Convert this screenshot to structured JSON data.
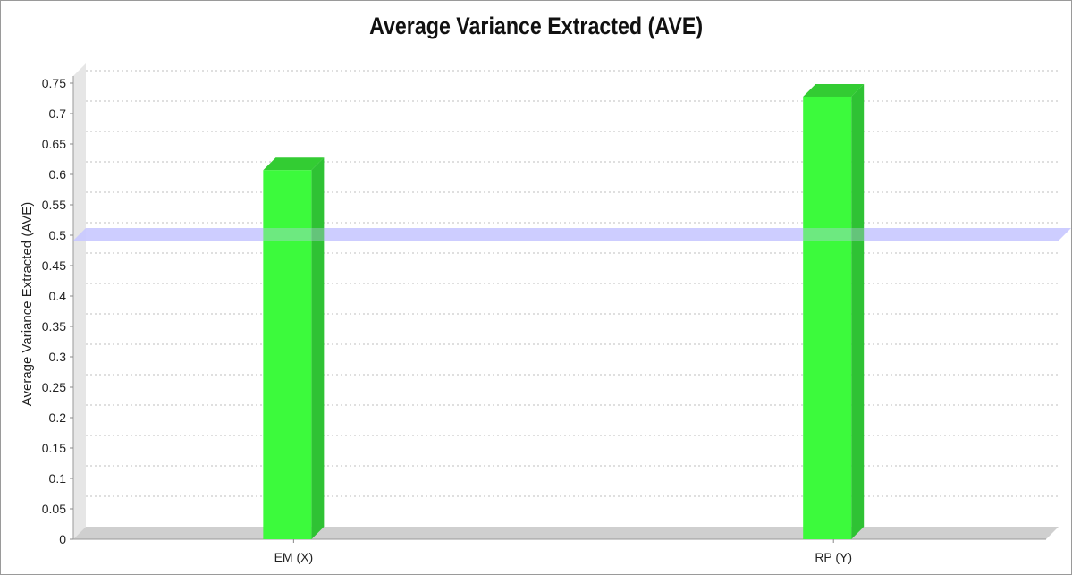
{
  "chart_data": {
    "type": "bar",
    "title": "Average Variance Extracted (AVE)",
    "ylabel": "Average Variance Extracted (AVE)",
    "xlabel": "",
    "categories": [
      "EM (X)",
      "RP (Y)"
    ],
    "values": [
      0.607,
      0.728
    ],
    "ylim": [
      0,
      0.75
    ],
    "yticks": [
      "0",
      "0.05",
      "0.1",
      "0.15",
      "0.2",
      "0.25",
      "0.3",
      "0.35",
      "0.4",
      "0.45",
      "0.5",
      "0.55",
      "0.6",
      "0.65",
      "0.7",
      "0.75"
    ],
    "threshold": 0.5,
    "grid": true,
    "legend": "none",
    "style": "3d",
    "colors": {
      "bar": "#3cfa3c",
      "bar_side": "#2fc234",
      "bar_top": "#33cc33",
      "threshold": "#c8c8ff",
      "grid": "#bfbfbf",
      "wall": "#e6e6e6",
      "floor": "#cfcfcf"
    }
  }
}
